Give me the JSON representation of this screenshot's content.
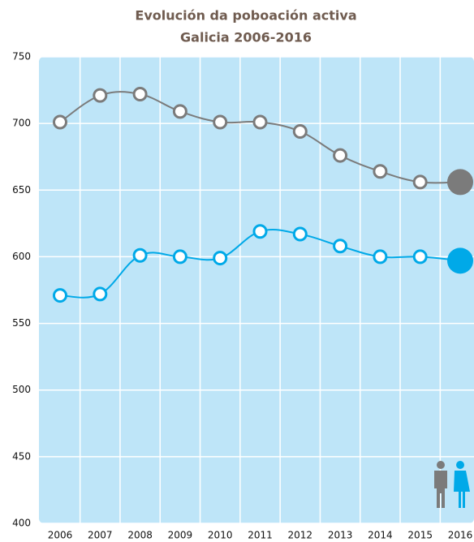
{
  "chart_data": {
    "type": "line",
    "title": "Evolución da poboación activa",
    "subtitle": "Galicia 2006-2016",
    "categories": [
      "2006",
      "2007",
      "2008",
      "2009",
      "2010",
      "2011",
      "2012",
      "2013",
      "2014",
      "2015",
      "2016"
    ],
    "series": [
      {
        "color": "#7b7b7b",
        "values": [
          701,
          721,
          722,
          709,
          701,
          701,
          694,
          676,
          664,
          656,
          656
        ]
      },
      {
        "color": "#00a9e8",
        "values": [
          571,
          572,
          601,
          600,
          599,
          619,
          617,
          608,
          600,
          600,
          597
        ]
      }
    ],
    "ylim": [
      400,
      750
    ],
    "yticks": [
      400,
      450,
      500,
      550,
      600,
      650,
      700,
      750
    ],
    "grid": true
  }
}
